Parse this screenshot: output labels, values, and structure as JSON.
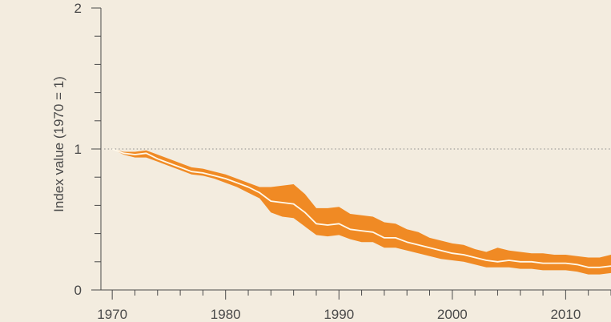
{
  "chart_data": {
    "type": "line",
    "title": "",
    "xlabel": "",
    "ylabel": "Index value (1970 = 1)",
    "x": [
      1970,
      1971,
      1972,
      1973,
      1974,
      1975,
      1976,
      1977,
      1978,
      1979,
      1980,
      1981,
      1982,
      1983,
      1984,
      1985,
      1986,
      1987,
      1988,
      1989,
      1990,
      1991,
      1992,
      1993,
      1994,
      1995,
      1996,
      1997,
      1998,
      1999,
      2000,
      2001,
      2002,
      2003,
      2004,
      2005,
      2006,
      2007,
      2008,
      2009,
      2010,
      2011,
      2012,
      2013,
      2014
    ],
    "series": [
      {
        "values": [
          1.0,
          0.97,
          0.96,
          0.97,
          0.93,
          0.9,
          0.87,
          0.84,
          0.83,
          0.81,
          0.79,
          0.76,
          0.73,
          0.69,
          0.63,
          0.62,
          0.61,
          0.55,
          0.47,
          0.46,
          0.47,
          0.43,
          0.42,
          0.41,
          0.37,
          0.37,
          0.34,
          0.32,
          0.3,
          0.28,
          0.26,
          0.25,
          0.23,
          0.21,
          0.2,
          0.21,
          0.2,
          0.2,
          0.19,
          0.19,
          0.19,
          0.18,
          0.16,
          0.16,
          0.17
        ],
        "lower": [
          1.0,
          0.96,
          0.94,
          0.94,
          0.91,
          0.88,
          0.85,
          0.82,
          0.81,
          0.79,
          0.76,
          0.73,
          0.69,
          0.65,
          0.55,
          0.52,
          0.51,
          0.45,
          0.39,
          0.38,
          0.39,
          0.36,
          0.34,
          0.34,
          0.3,
          0.3,
          0.28,
          0.26,
          0.24,
          0.22,
          0.21,
          0.2,
          0.18,
          0.16,
          0.16,
          0.16,
          0.15,
          0.15,
          0.14,
          0.14,
          0.14,
          0.13,
          0.11,
          0.11,
          0.12
        ],
        "upper": [
          1.0,
          0.98,
          0.98,
          0.99,
          0.96,
          0.93,
          0.9,
          0.87,
          0.86,
          0.84,
          0.82,
          0.79,
          0.76,
          0.73,
          0.73,
          0.74,
          0.75,
          0.68,
          0.58,
          0.58,
          0.59,
          0.54,
          0.53,
          0.52,
          0.48,
          0.47,
          0.43,
          0.41,
          0.37,
          0.35,
          0.33,
          0.32,
          0.29,
          0.27,
          0.3,
          0.28,
          0.27,
          0.26,
          0.26,
          0.25,
          0.25,
          0.24,
          0.23,
          0.23,
          0.25
        ]
      }
    ],
    "xlim": [
      1969,
      2014
    ],
    "ylim": [
      0,
      2
    ],
    "yticks": [
      "0",
      "1",
      "2"
    ],
    "xticks": [
      "1970",
      "1980",
      "1990",
      "2000",
      "2010"
    ],
    "reference_line": 1,
    "colors": {
      "band": "#f08a24",
      "line": "#fff8ea",
      "axis": "#4a4a4a",
      "reference": "#8a8a8a",
      "background": "#f3ecdf"
    }
  }
}
